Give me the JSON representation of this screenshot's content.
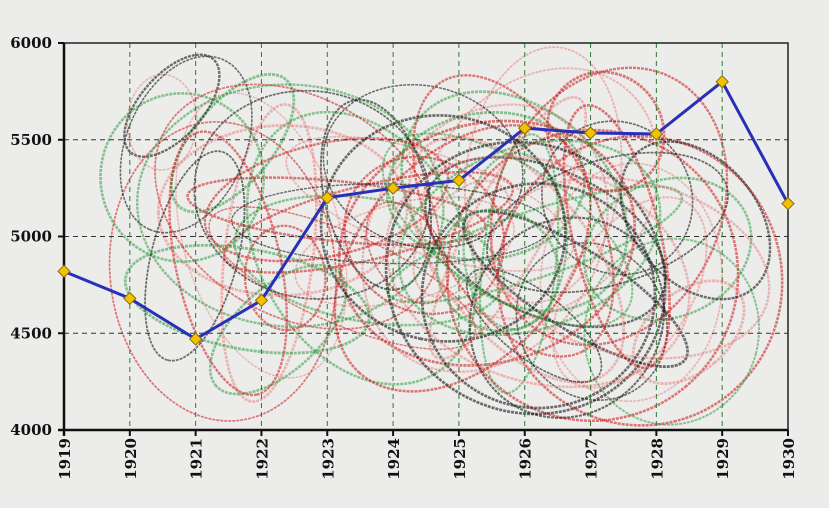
{
  "chart_data": {
    "type": "line",
    "title": "",
    "xlabel": "",
    "ylabel": "",
    "categories": [
      "1919",
      "1920",
      "1921",
      "1922",
      "1923",
      "1924",
      "1925",
      "1926",
      "1927",
      "1928",
      "1929",
      "1930"
    ],
    "series": [
      {
        "values": [
          4820,
          4680,
          4470,
          4670,
          5200,
          5250,
          5290,
          5560,
          5535,
          5530,
          5800,
          5170
        ],
        "color": "#2a2fb8",
        "marker_color": "#f2c200"
      }
    ],
    "yticks": [
      "4000",
      "4500",
      "5000",
      "5500",
      "6000"
    ],
    "ylim": [
      4000,
      6000
    ],
    "grid": true,
    "grid_color": "#2e7d32"
  }
}
